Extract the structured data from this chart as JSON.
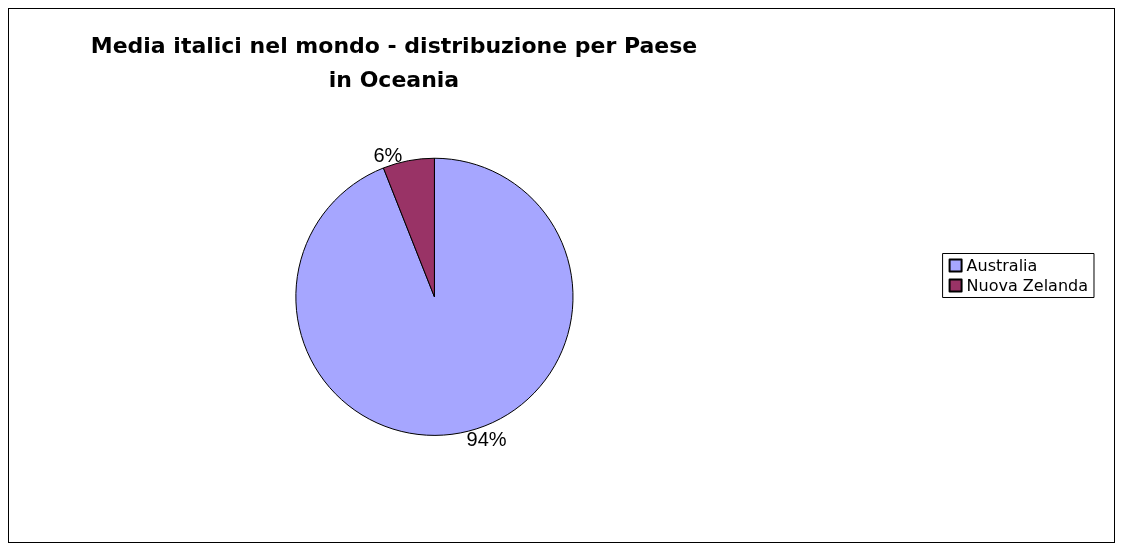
{
  "chart_data": {
    "type": "pie",
    "title": "Media italici nel mondo - distribuzione per Paese\nin Oceania",
    "categories": [
      "Australia",
      "Nuova Zelanda"
    ],
    "values": [
      94,
      6
    ],
    "colors": [
      "#a6a6ff",
      "#993366"
    ],
    "value_labels": [
      "94%",
      "6%"
    ],
    "legend": "right"
  }
}
